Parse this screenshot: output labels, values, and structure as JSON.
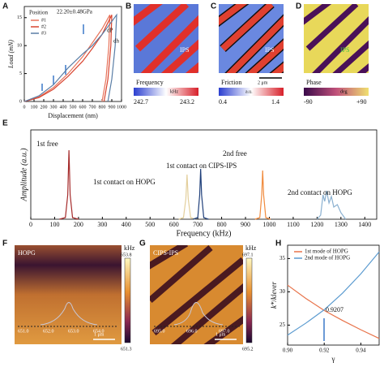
{
  "chart_data": [
    {
      "type": "line",
      "xlabel": "Displacement (nm)",
      "ylabel": "Load (mN)",
      "xlim": [
        0,
        1000
      ],
      "xticks": [
        0,
        100,
        200,
        300,
        400,
        500,
        600,
        700,
        800,
        900,
        1000
      ],
      "ylim": [
        0,
        17
      ],
      "yticks": [
        0,
        5,
        10,
        15
      ],
      "legend_title": "Position",
      "annotations": [
        "22.20±0.48GPa",
        "dP",
        "dh"
      ],
      "series": [
        {
          "name": "#1",
          "color": "#e8735a",
          "x": [
            0,
            150,
            300,
            450,
            600,
            700,
            800,
            880,
            870,
            840,
            800
          ],
          "values": [
            0,
            0.8,
            2.5,
            5,
            8,
            10.5,
            13,
            15.5,
            10,
            4,
            0
          ]
        },
        {
          "name": "#2",
          "color": "#d9442f",
          "x": [
            0,
            150,
            300,
            450,
            600,
            700,
            800,
            900,
            890,
            860,
            820
          ],
          "values": [
            0,
            0.7,
            2.2,
            4.5,
            7.2,
            9.5,
            12,
            15.5,
            10,
            4,
            0
          ]
        },
        {
          "name": "#3",
          "color": "#5a7ea6",
          "x": [
            0,
            150,
            300,
            450,
            600,
            700,
            800,
            950,
            935,
            900,
            860
          ],
          "values": [
            0,
            1,
            3,
            6,
            8.5,
            10,
            12,
            15.5,
            10,
            4,
            0
          ]
        }
      ]
    },
    {
      "type": "line",
      "xlabel": "Frequency (kHz)",
      "ylabel": "Amplitude (a.u.)",
      "xlim": [
        0,
        1450
      ],
      "xticks": [
        0,
        100,
        200,
        300,
        400,
        500,
        600,
        700,
        800,
        900,
        1000,
        1100,
        1200,
        1300,
        1400
      ],
      "ylim": [
        0,
        1.1
      ],
      "yticks": [],
      "annotations": [
        "1st free",
        "1st contact on HOPG",
        "1st contact on CIPS-IPS",
        "2nd free",
        "2nd contact on HOPG"
      ],
      "series": [
        {
          "color": "#a52a2a",
          "x": [
            120,
            145,
            155,
            160,
            165,
            175,
            200
          ],
          "values": [
            0,
            0.02,
            0.3,
            0.85,
            0.3,
            0.02,
            0
          ]
        },
        {
          "color": "#e3cf9c",
          "x": [
            620,
            640,
            650,
            655,
            660,
            670,
            690
          ],
          "values": [
            0,
            0.02,
            0.25,
            0.55,
            0.25,
            0.02,
            0
          ]
        },
        {
          "color": "#1f3f7a",
          "x": [
            680,
            700,
            708,
            712,
            716,
            725,
            745
          ],
          "values": [
            0,
            0.02,
            0.3,
            0.62,
            0.3,
            0.02,
            0
          ]
        },
        {
          "color": "#f08a3c",
          "x": [
            940,
            960,
            968,
            972,
            976,
            985,
            1005
          ],
          "values": [
            0,
            0.02,
            0.3,
            0.6,
            0.3,
            0.02,
            0
          ]
        },
        {
          "color": "#8ab0d0",
          "x": [
            1200,
            1215,
            1225,
            1232,
            1240,
            1250,
            1260,
            1270,
            1285,
            1300,
            1320
          ],
          "values": [
            0,
            0.05,
            0.3,
            0.22,
            0.35,
            0.2,
            0.28,
            0.15,
            0.18,
            0.08,
            0
          ]
        }
      ]
    },
    {
      "type": "line",
      "xlabel": "γ",
      "ylabel": "k*/klever",
      "xlim": [
        0.9,
        0.95
      ],
      "xticks": [
        {
          "value": 0.9,
          "label": "0.90"
        },
        0.92,
        0.94
      ],
      "ylim": [
        22,
        37
      ],
      "yticks": [
        25,
        30,
        35
      ],
      "annotations": [
        "0.9207"
      ],
      "series": [
        {
          "name": "1st mode of HOPG",
          "color": "#e8734a",
          "x": [
            0.9,
            0.91,
            0.92,
            0.93,
            0.94,
            0.95
          ],
          "values": [
            31,
            29,
            27.2,
            25.7,
            24.3,
            23
          ]
        },
        {
          "name": "2nd mode of HOPG",
          "color": "#5b9bd0",
          "x": [
            0.9,
            0.91,
            0.92,
            0.93,
            0.94,
            0.95
          ],
          "values": [
            23.5,
            25.3,
            27.3,
            29.8,
            32.7,
            36
          ]
        }
      ]
    }
  ],
  "panel_labels": [
    "A",
    "B",
    "C",
    "D",
    "E",
    "F",
    "G",
    "H"
  ],
  "maps": [
    {
      "title": "Frequency",
      "unit": "kHz",
      "min": "242.7",
      "max": "243.2",
      "label": "IPS"
    },
    {
      "title": "Friction",
      "unit": "a.u.",
      "min": "0.4",
      "max": "1.4",
      "label": "IPS",
      "scale": "2 μm"
    },
    {
      "title": "Phase",
      "unit": "deg",
      "min": "-90",
      "max": "+90",
      "label": "IPS"
    },
    {
      "title": "HOPG",
      "unit": "kHz",
      "max": "653.8",
      "min": "651.3",
      "axis": [
        "651.0",
        "652.0",
        "653.0",
        "654.0"
      ],
      "scale": "1 μm"
    },
    {
      "title": "CIPS-IPS",
      "unit": "kHz",
      "max": "697.1",
      "min": "695.2",
      "axis": [
        "695.0",
        "696.0",
        "697.0"
      ],
      "scale": "1 μm"
    }
  ]
}
